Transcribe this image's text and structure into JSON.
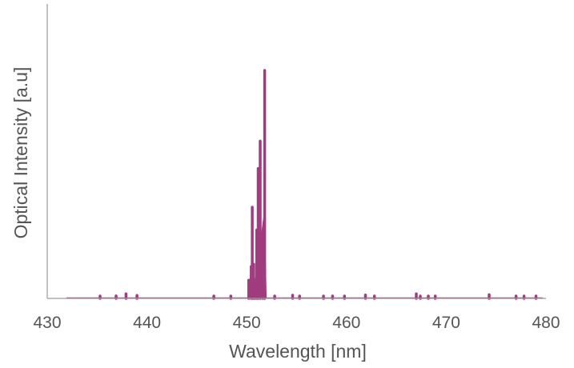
{
  "chart_data": {
    "type": "line",
    "title": "",
    "xlabel": "Wavelength [nm]",
    "ylabel": "Optical Intensity [a.u]",
    "xlim": [
      430,
      480
    ],
    "ylim": [
      0,
      1
    ],
    "x_ticks": [
      "430",
      "440",
      "450",
      "460",
      "470",
      "480"
    ],
    "y_ticks": [],
    "grid": false,
    "legend": "none",
    "series": [
      {
        "color": "#a03c7f",
        "points": [
          [
            435.3,
            0.01
          ],
          [
            436.9,
            0.011
          ],
          [
            437.9,
            0.02
          ],
          [
            439.0,
            0.013
          ],
          [
            446.7,
            0.004
          ],
          [
            448.4,
            0.003
          ],
          [
            450.2,
            0.08
          ],
          [
            450.45,
            0.14
          ],
          [
            450.55,
            0.4
          ],
          [
            450.7,
            0.15
          ],
          [
            450.85,
            0.05
          ],
          [
            451.0,
            0.3
          ],
          [
            451.15,
            0.57
          ],
          [
            451.35,
            0.69
          ],
          [
            451.6,
            0.2
          ],
          [
            451.8,
            1.0
          ],
          [
            452.8,
            0.009
          ],
          [
            454.6,
            0.014
          ],
          [
            455.3,
            0.006
          ],
          [
            457.7,
            0.005
          ],
          [
            458.6,
            0.006
          ],
          [
            459.8,
            0.005
          ],
          [
            461.9,
            0.015
          ],
          [
            462.8,
            0.005
          ],
          [
            467.0,
            0.02
          ],
          [
            467.4,
            0.008
          ],
          [
            468.2,
            0.005
          ],
          [
            468.9,
            0.004
          ],
          [
            474.3,
            0.016
          ],
          [
            477.0,
            0.005
          ],
          [
            477.8,
            0.01
          ],
          [
            479.0,
            0.006
          ]
        ]
      }
    ]
  }
}
